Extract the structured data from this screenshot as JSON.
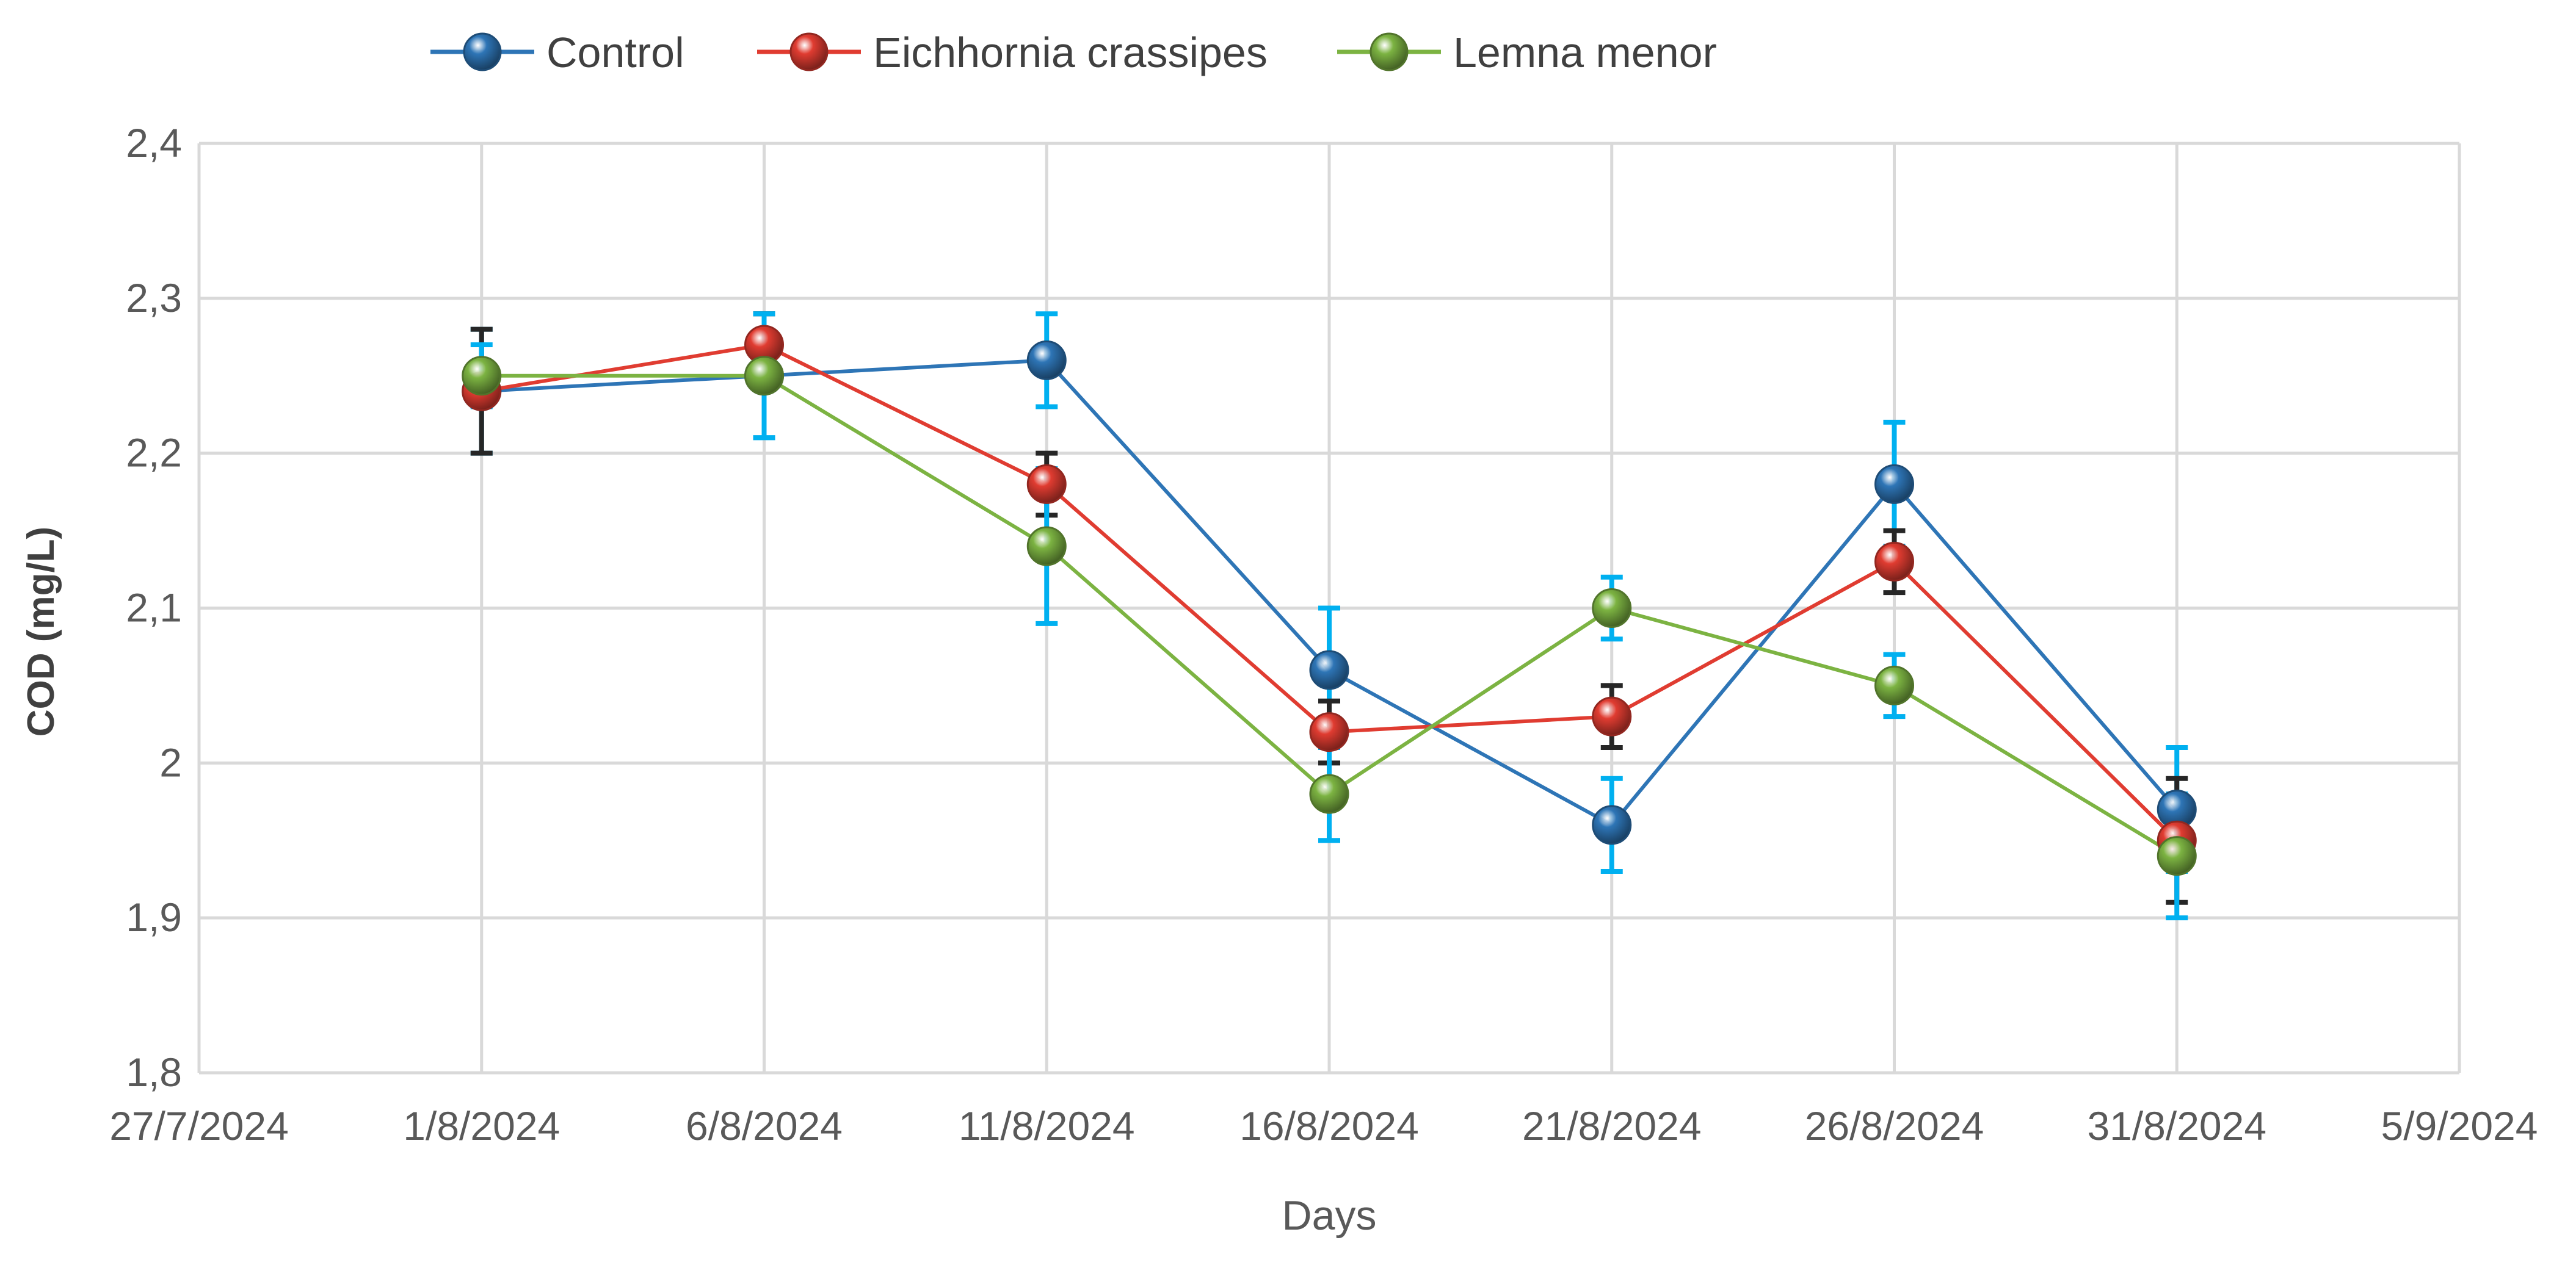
{
  "chart_data": {
    "type": "line",
    "xlabel": "Days",
    "ylabel": "COD (mg/L)",
    "x_tick_labels": [
      "27/7/2024",
      "1/8/2024",
      "6/8/2024",
      "11/8/2024",
      "16/8/2024",
      "21/8/2024",
      "26/8/2024",
      "31/8/2024",
      "5/9/2024"
    ],
    "y_tick_labels": [
      "1,8",
      "1,9",
      "2",
      "2,1",
      "2,2",
      "2,3",
      "2,4"
    ],
    "x_dates": [
      "1/8/2024",
      "6/8/2024",
      "11/8/2024",
      "16/8/2024",
      "21/8/2024",
      "26/8/2024",
      "31/8/2024"
    ],
    "xlim": [
      "27/7/2024",
      "5/9/2024"
    ],
    "ylim": [
      1.8,
      2.4
    ],
    "grid": true,
    "legend_position": "top",
    "series": [
      {
        "name": "Control",
        "color": "#2e75b6",
        "values": [
          2.24,
          2.25,
          2.26,
          2.06,
          1.96,
          2.18,
          1.97
        ],
        "error": [
          0.04,
          0.04,
          0.03,
          0.04,
          0.03,
          0.04,
          0.04
        ],
        "error_color": "#00b0f0"
      },
      {
        "name": "Eichhornia crassipes",
        "color": "#e03c31",
        "values": [
          2.24,
          2.27,
          2.18,
          2.02,
          2.03,
          2.13,
          1.95
        ],
        "error": [
          0.04,
          0.02,
          0.02,
          0.02,
          0.02,
          0.02,
          0.04
        ],
        "error_color": "#262626"
      },
      {
        "name": "Lemna menor",
        "color": "#7cb342",
        "values": [
          2.25,
          2.25,
          2.14,
          1.98,
          2.1,
          2.05,
          1.94
        ],
        "error": [
          0.02,
          0.04,
          0.05,
          0.03,
          0.02,
          0.02,
          0.04
        ],
        "error_color": "#00b0f0"
      }
    ]
  }
}
